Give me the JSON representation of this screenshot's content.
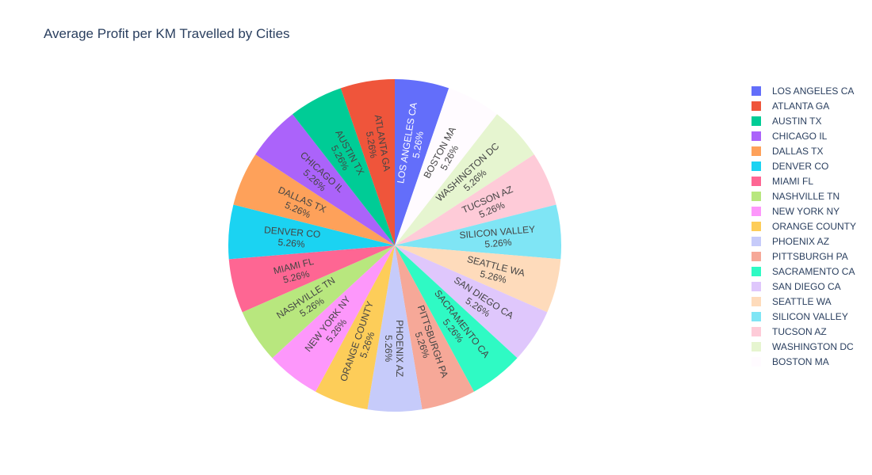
{
  "chart_data": {
    "type": "pie",
    "title": "Average Profit per KM Travelled by Cities",
    "categories": [
      "LOS ANGELES CA",
      "BOSTON MA",
      "WASHINGTON DC",
      "TUCSON AZ",
      "SILICON VALLEY",
      "SEATTLE WA",
      "SAN DIEGO CA",
      "SACRAMENTO CA",
      "PITTSBURGH PA",
      "PHOENIX AZ",
      "ORANGE COUNTY",
      "NEW YORK NY",
      "NASHVILLE TN",
      "MIAMI FL",
      "DENVER CO",
      "DALLAS TX",
      "CHICAGO IL",
      "AUSTIN TX",
      "ATLANTA GA"
    ],
    "values": [
      5.26,
      5.26,
      5.26,
      5.26,
      5.26,
      5.26,
      5.26,
      5.26,
      5.26,
      5.26,
      5.26,
      5.26,
      5.26,
      5.26,
      5.26,
      5.26,
      5.26,
      5.26,
      5.26
    ],
    "percent_labels": [
      "5.26%",
      "5.26%",
      "5.26%",
      "5.26%",
      "5.26%",
      "5.26%",
      "5.26%",
      "5.26%",
      "5.26%",
      "5.26%",
      "5.26%",
      "5.26%",
      "5.26%",
      "5.26%",
      "5.26%",
      "5.26%",
      "5.26%",
      "5.26%",
      "5.26%"
    ],
    "colors": [
      "#636efa",
      "#fffbff",
      "#e6f5d0",
      "#fecbd8",
      "#7fe5f5",
      "#fedbbb",
      "#dfc7fc",
      "#2ffac4",
      "#f6a898",
      "#c6cbfa",
      "#fdcd59",
      "#fd97fb",
      "#b8e77e",
      "#fe6693",
      "#1bd3f2",
      "#fea15a",
      "#ab63fa",
      "#00cc96",
      "#ef553b"
    ],
    "text_colors": [
      "#ffffff",
      "#444444",
      "#444444",
      "#444444",
      "#444444",
      "#444444",
      "#444444",
      "#444444",
      "#444444",
      "#444444",
      "#444444",
      "#444444",
      "#444444",
      "#444444",
      "#444444",
      "#444444",
      "#444444",
      "#444444",
      "#444444"
    ],
    "legend": {
      "placement": "right",
      "order": [
        "LOS ANGELES CA",
        "ATLANTA GA",
        "AUSTIN TX",
        "CHICAGO IL",
        "DALLAS TX",
        "DENVER CO",
        "MIAMI FL",
        "NASHVILLE TN",
        "NEW YORK NY",
        "ORANGE COUNTY",
        "PHOENIX AZ",
        "PITTSBURGH PA",
        "SACRAMENTO CA",
        "SAN DIEGO CA",
        "SEATTLE WA",
        "SILICON VALLEY",
        "TUCSON AZ",
        "WASHINGTON DC",
        "BOSTON MA"
      ]
    }
  }
}
